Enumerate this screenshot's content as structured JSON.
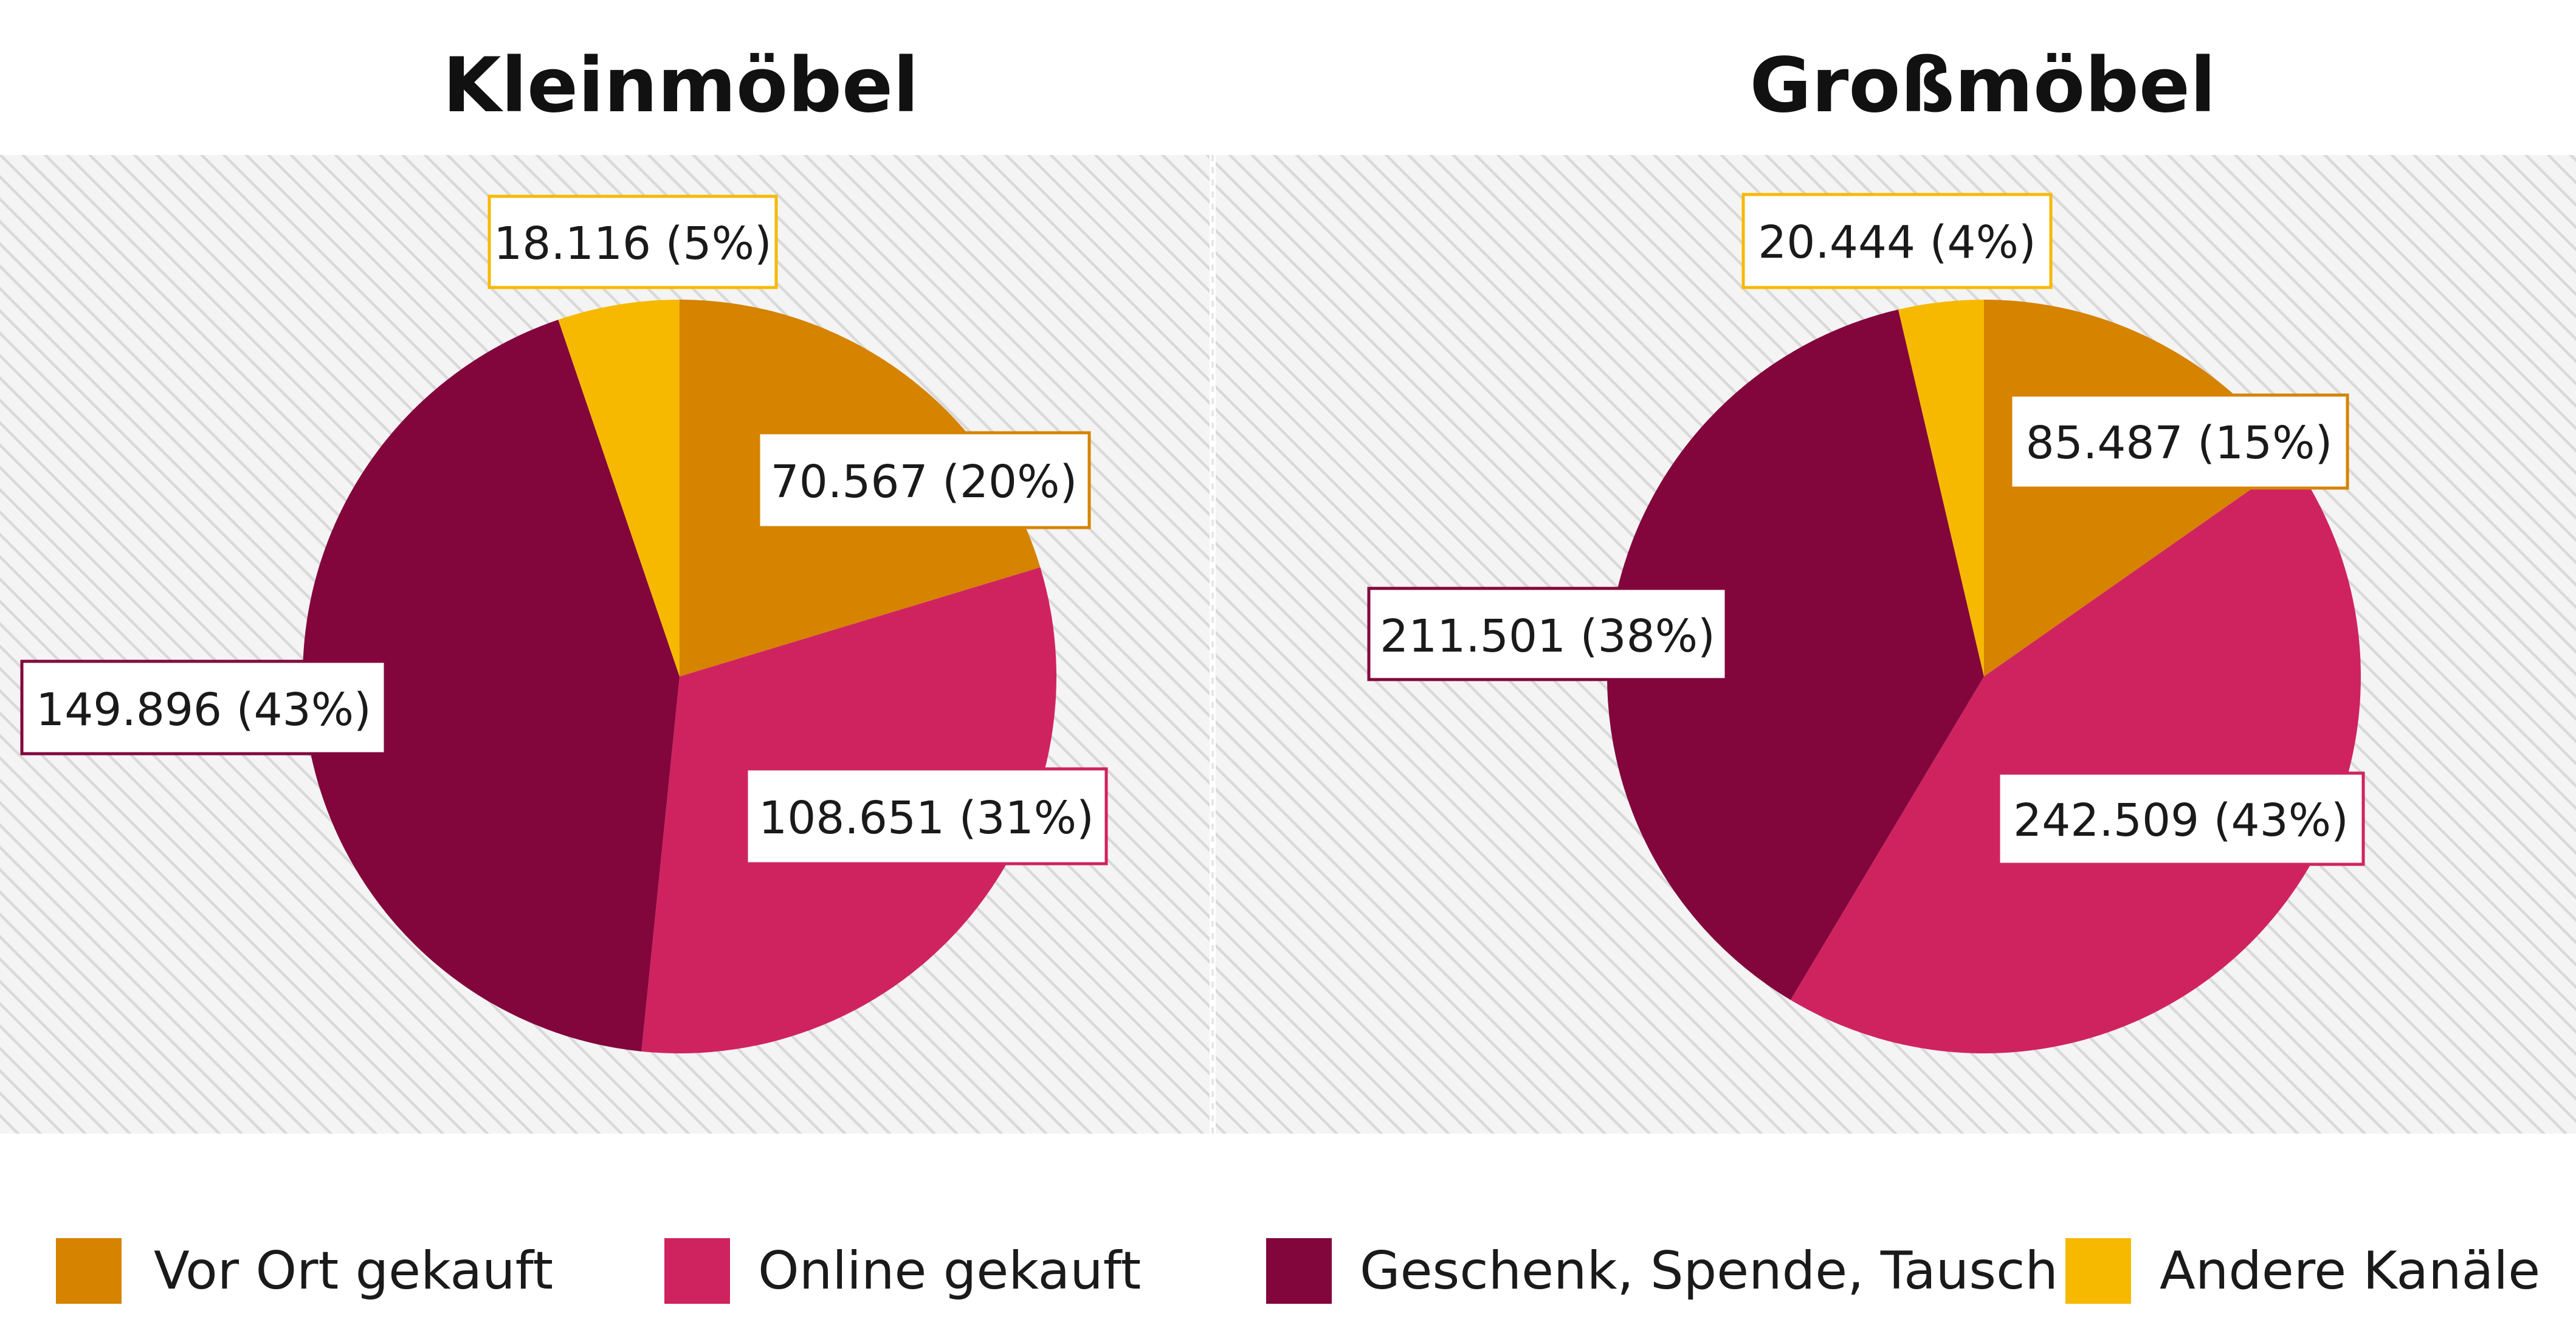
{
  "chart_data": [
    {
      "type": "pie",
      "title": "Kleinmöbel",
      "categories": [
        "Vor Ort gekauft",
        "Online gekauft",
        "Geschenk, Spende, Tausch",
        "Andere Kanäle"
      ],
      "values": [
        70567,
        108651,
        149896,
        18116
      ],
      "labels": [
        "70.567 (20%)",
        "108.651 (31%)",
        "149.896 (43%)",
        "18.116 (5%)"
      ]
    },
    {
      "type": "pie",
      "title": "Großmöbel",
      "categories": [
        "Vor Ort gekauft",
        "Online gekauft",
        "Geschenk, Spende, Tausch",
        "Andere Kanäle"
      ],
      "values": [
        85487,
        242509,
        211501,
        20444
      ],
      "labels": [
        "85.487 (15%)",
        "242.509 (43%)",
        "211.501 (38%)",
        "20.444 (4%)"
      ]
    }
  ],
  "legend": [
    {
      "label": "Vor Ort gekauft",
      "color": "#d68300"
    },
    {
      "label": "Online gekauft",
      "color": "#cf2360"
    },
    {
      "label": "Geschenk, Spende, Tausch",
      "color": "#82063c"
    },
    {
      "label": "Andere Kanäle",
      "color": "#f7b900"
    }
  ],
  "colors": {
    "vor_ort": "#d68300",
    "online": "#cf2360",
    "geschenk": "#82063c",
    "andere": "#f7b900",
    "hatch_line": "#d9d9d9",
    "panel_bg": "#f4f4f4"
  }
}
